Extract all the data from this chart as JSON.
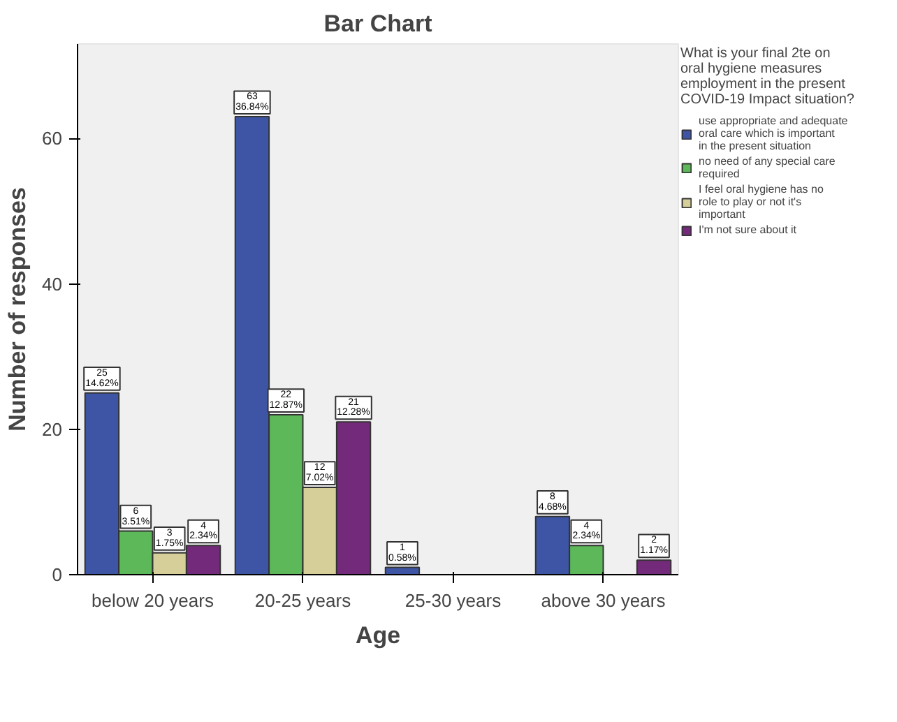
{
  "chart_data": {
    "type": "bar",
    "title": "Bar Chart",
    "xlabel": "Age",
    "ylabel": "Number of responses",
    "legend_title": "What is your final 2te on oral hygiene measures employment in the present COVID-19 Impact situation?",
    "categories": [
      "below 20 years",
      "20-25 years",
      "25-30 years",
      "above 30 years"
    ],
    "series": [
      {
        "name": "use appropriate and adequate oral care which is important in the present situation",
        "color": "#3e55a5",
        "values": [
          25,
          63,
          1,
          8
        ],
        "value_labels": [
          "25\n14.62%",
          "63\n36.84%",
          "1\n0.58%",
          "8\n4.68%"
        ]
      },
      {
        "name": "no need of any special care required",
        "color": "#5cb858",
        "values": [
          6,
          22,
          null,
          4
        ],
        "value_labels": [
          "6\n3.51%",
          "22\n12.87%",
          null,
          "4\n2.34%"
        ]
      },
      {
        "name": "I feel oral hygiene has no role to play or not it's important",
        "color": "#d6cf9a",
        "values": [
          3,
          12,
          null,
          null
        ],
        "value_labels": [
          "3\n1.75%",
          "12\n7.02%",
          null,
          null
        ]
      },
      {
        "name": "I'm not sure about it",
        "color": "#742a7a",
        "values": [
          4,
          21,
          null,
          2
        ],
        "value_labels": [
          "4\n2.34%",
          "21\n12.28%",
          null,
          "2\n1.17%"
        ]
      }
    ],
    "ylim": [
      0,
      73
    ],
    "yticks": [
      0,
      20,
      40,
      60
    ],
    "grid": false,
    "legend": "right"
  }
}
